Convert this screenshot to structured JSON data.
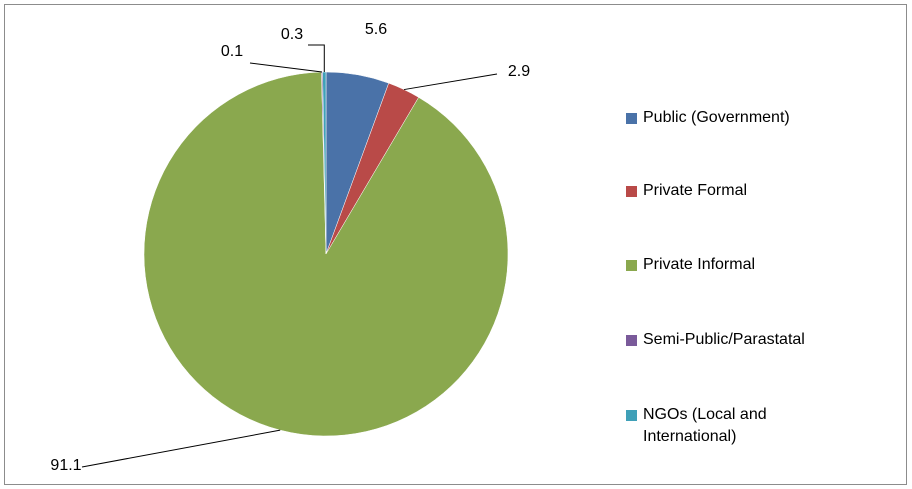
{
  "chart_data": {
    "type": "pie",
    "categories": [
      "Public (Government)",
      "Private Formal",
      "Private Informal",
      "Semi-Public/Parastatal",
      "NGOs (Local and International)"
    ],
    "values": [
      5.6,
      2.9,
      91.1,
      0.1,
      0.3
    ],
    "colors": [
      "#4a72a8",
      "#b94a48",
      "#8aa84e",
      "#7a5a9a",
      "#3fa0b8"
    ],
    "legend": "right"
  }
}
